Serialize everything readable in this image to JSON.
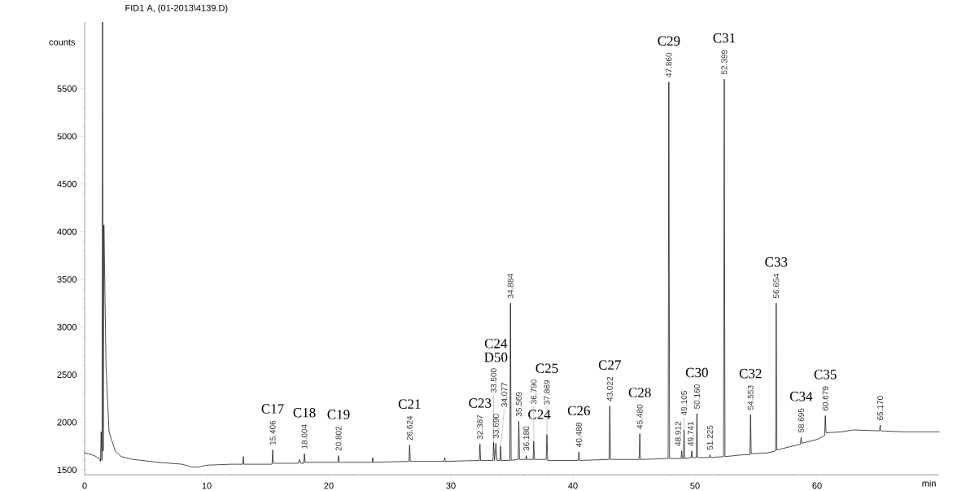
{
  "chart_data": {
    "type": "line",
    "title": "FID1 A, (01-2013\\4139.D)",
    "ylabel": "counts",
    "xlabel": "min",
    "color": "#000000",
    "x": [
      0,
      0.8,
      1.2,
      1.3,
      1.35,
      1.42,
      1.47,
      1.52,
      1.58,
      1.75,
      2.0,
      2.5,
      3,
      4,
      6,
      8,
      8.8,
      9.3,
      10,
      12,
      12.95,
      13.0,
      13.05,
      15.35,
      15.406,
      15.46,
      17.5,
      17.6,
      17.7,
      17.95,
      18.004,
      18.06,
      20.75,
      20.802,
      20.86,
      23.55,
      23.6,
      23.65,
      26.57,
      26.624,
      26.68,
      29.45,
      29.5,
      29.55,
      32.33,
      32.387,
      32.44,
      33.45,
      33.5,
      33.58,
      33.69,
      33.78,
      34.02,
      34.077,
      34.13,
      34.83,
      34.884,
      34.94,
      35.51,
      35.569,
      35.63,
      36.13,
      36.18,
      36.23,
      36.74,
      36.79,
      36.85,
      37.81,
      37.869,
      37.93,
      40.43,
      40.488,
      40.55,
      42.96,
      43.022,
      43.08,
      45.42,
      45.48,
      45.54,
      47.8,
      47.86,
      47.92,
      48.86,
      48.912,
      48.96,
      49.05,
      49.105,
      49.16,
      49.69,
      49.741,
      49.79,
      50.11,
      50.16,
      50.21,
      51.17,
      51.225,
      51.28,
      52.34,
      52.399,
      52.46,
      54.0,
      54.5,
      54.553,
      54.61,
      56.0,
      56.6,
      56.654,
      56.71,
      58.0,
      58.64,
      58.695,
      58.75,
      60.0,
      60.62,
      60.679,
      60.74,
      62,
      63,
      65.12,
      65.17,
      65.22,
      67,
      70
    ],
    "values": [
      1680,
      1650,
      1620,
      1590,
      1900,
      1600,
      6200,
      1700,
      4070,
      2600,
      1900,
      1700,
      1640,
      1610,
      1580,
      1560,
      1530,
      1530,
      1550,
      1560,
      1560,
      1640,
      1560,
      1560,
      1710,
      1570,
      1570,
      1610,
      1570,
      1570,
      1670,
      1580,
      1580,
      1650,
      1580,
      1580,
      1630,
      1580,
      1590,
      1760,
      1590,
      1590,
      1630,
      1590,
      1600,
      1770,
      1600,
      1600,
      1790,
      1600,
      1780,
      1600,
      1600,
      1750,
      1600,
      1600,
      3250,
      1600,
      1610,
      2010,
      1610,
      1610,
      1650,
      1610,
      1610,
      1800,
      1610,
      1610,
      1870,
      1600,
      1600,
      1690,
      1600,
      1610,
      2170,
      1610,
      1610,
      1880,
      1610,
      1620,
      5570,
      1620,
      1620,
      1700,
      1620,
      1620,
      1920,
      1620,
      1630,
      1700,
      1630,
      1630,
      2090,
      1630,
      1630,
      1660,
      1630,
      1640,
      5600,
      1640,
      1660,
      1660,
      2080,
      1670,
      1680,
      1700,
      3250,
      1710,
      1750,
      1770,
      1840,
      1780,
      1820,
      1860,
      2070,
      1890,
      1900,
      1920,
      1910,
      1970,
      1910,
      1900,
      1900
    ],
    "xlim": [
      0,
      70
    ],
    "ylim": [
      1450,
      6200
    ],
    "xticks": [
      0,
      10,
      20,
      30,
      40,
      50,
      60
    ],
    "yticks": [
      1500,
      2000,
      2500,
      3000,
      3500,
      4000,
      4500,
      5000,
      5500
    ],
    "annotations": [
      {
        "text": "15.406",
        "x": 15.406,
        "y": 1710
      },
      {
        "text": "C17",
        "x": 15.406,
        "y": 1710
      },
      {
        "text": "18.004",
        "x": 18.004,
        "y": 1670
      },
      {
        "text": "C18",
        "x": 18.004,
        "y": 1670
      },
      {
        "text": "20.802",
        "x": 20.802,
        "y": 1650
      },
      {
        "text": "C19",
        "x": 20.802,
        "y": 1650
      },
      {
        "text": "26.624",
        "x": 26.624,
        "y": 1760
      },
      {
        "text": "C21",
        "x": 26.624,
        "y": 1760
      },
      {
        "text": "32.387",
        "x": 32.387,
        "y": 1770
      },
      {
        "text": "C23",
        "x": 32.387,
        "y": 1770
      },
      {
        "text": "33.500",
        "x": 33.5,
        "y": 1790
      },
      {
        "text": "33.690",
        "x": 33.69,
        "y": 1780
      },
      "D50",
      "C24",
      {
        "text": "34.077",
        "x": 34.077,
        "y": 1750
      },
      {
        "text": "34.884",
        "x": 34.884,
        "y": 3250
      },
      {
        "text": "35.569",
        "x": 35.569,
        "y": 2010
      },
      {
        "text": "36.180",
        "x": 36.18,
        "y": 1650
      },
      "C24",
      {
        "text": "36.790",
        "x": 36.79,
        "y": 1800
      },
      {
        "text": "37.869",
        "x": 37.869,
        "y": 1870
      },
      "C25",
      {
        "text": "40.488",
        "x": 40.488,
        "y": 1690
      },
      {
        "text": "C26",
        "x": 40.488,
        "y": 1690
      },
      {
        "text": "43.022",
        "x": 43.022,
        "y": 2170
      },
      {
        "text": "C27",
        "x": 43.022,
        "y": 2170
      },
      {
        "text": "45.480",
        "x": 45.48,
        "y": 1880
      },
      {
        "text": "C28",
        "x": 45.48,
        "y": 1880
      },
      {
        "text": "47.860",
        "x": 47.86,
        "y": 5570
      },
      {
        "text": "C29",
        "x": 47.86,
        "y": 5570
      },
      {
        "text": "48.912",
        "x": 48.912,
        "y": 1700
      },
      {
        "text": "49.105",
        "x": 49.105,
        "y": 1920
      },
      {
        "text": "49.741",
        "x": 49.741,
        "y": 1700
      },
      {
        "text": "50.160",
        "x": 50.16,
        "y": 2090
      },
      {
        "text": "C30",
        "x": 50.16,
        "y": 2090
      },
      {
        "text": "51.225",
        "x": 51.225,
        "y": 1660
      },
      {
        "text": "52.399",
        "x": 52.399,
        "y": 5600
      },
      {
        "text": "C31",
        "x": 52.399,
        "y": 5600
      },
      {
        "text": "54.553",
        "x": 54.553,
        "y": 2080
      },
      {
        "text": "C32",
        "x": 54.553,
        "y": 2080
      },
      {
        "text": "56.654",
        "x": 56.654,
        "y": 3250
      },
      {
        "text": "C33",
        "x": 56.654,
        "y": 3250
      },
      {
        "text": "58.695",
        "x": 58.695,
        "y": 1840
      },
      {
        "text": "C34",
        "x": 58.695,
        "y": 1840
      },
      {
        "text": "60.679",
        "x": 60.679,
        "y": 2070
      },
      {
        "text": "C35",
        "x": 60.679,
        "y": 2070
      },
      {
        "text": "65.170",
        "x": 65.17,
        "y": 1970
      }
    ]
  }
}
